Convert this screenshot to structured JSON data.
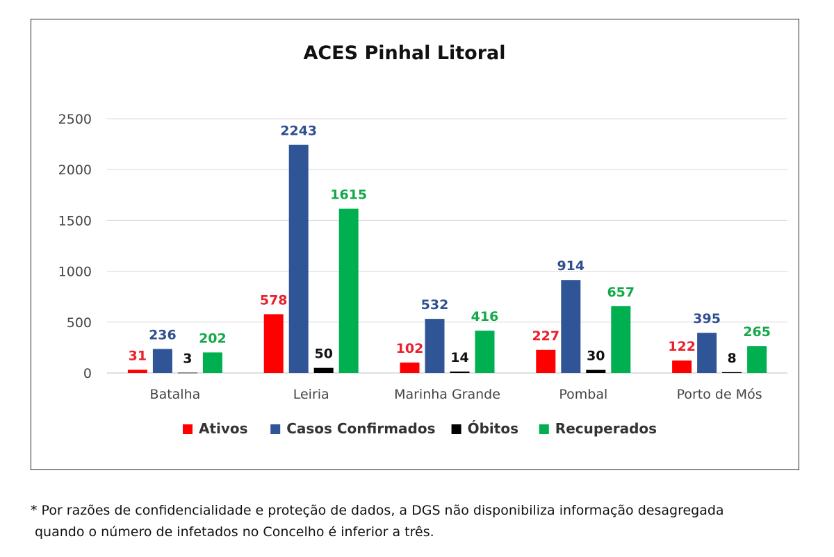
{
  "chart_data": {
    "type": "bar",
    "title": "ACES Pinhal Litoral",
    "categories": [
      "Batalha",
      "Leiria",
      "Marinha Grande",
      "Pombal",
      "Porto de Mós"
    ],
    "series": [
      {
        "name": "Ativos",
        "color": "#ff0000",
        "label_color": "#e8202a",
        "values": [
          31,
          578,
          102,
          227,
          122
        ]
      },
      {
        "name": "Casos Confirmados",
        "color": "#2f5597",
        "label_color": "#2f4f8f",
        "values": [
          236,
          2243,
          532,
          914,
          395
        ]
      },
      {
        "name": "Óbitos",
        "color": "#000000",
        "label_color": "#111111",
        "values": [
          3,
          50,
          14,
          30,
          8
        ]
      },
      {
        "name": "Recuperados",
        "color": "#00b050",
        "label_color": "#13a84a",
        "values": [
          202,
          1615,
          416,
          657,
          265
        ]
      }
    ],
    "yticks": [
      "0",
      "500",
      "1000",
      "1500",
      "2000",
      "2500"
    ],
    "ylim": [
      0,
      2500
    ],
    "grid": true,
    "legend_position": "bottom"
  },
  "footnote": {
    "line1": "* Por razões de confidencialidade e proteção de dados, a DGS não disponibiliza informação desagregada",
    "line2": "quando o número de infetados no Concelho é inferior a três."
  }
}
